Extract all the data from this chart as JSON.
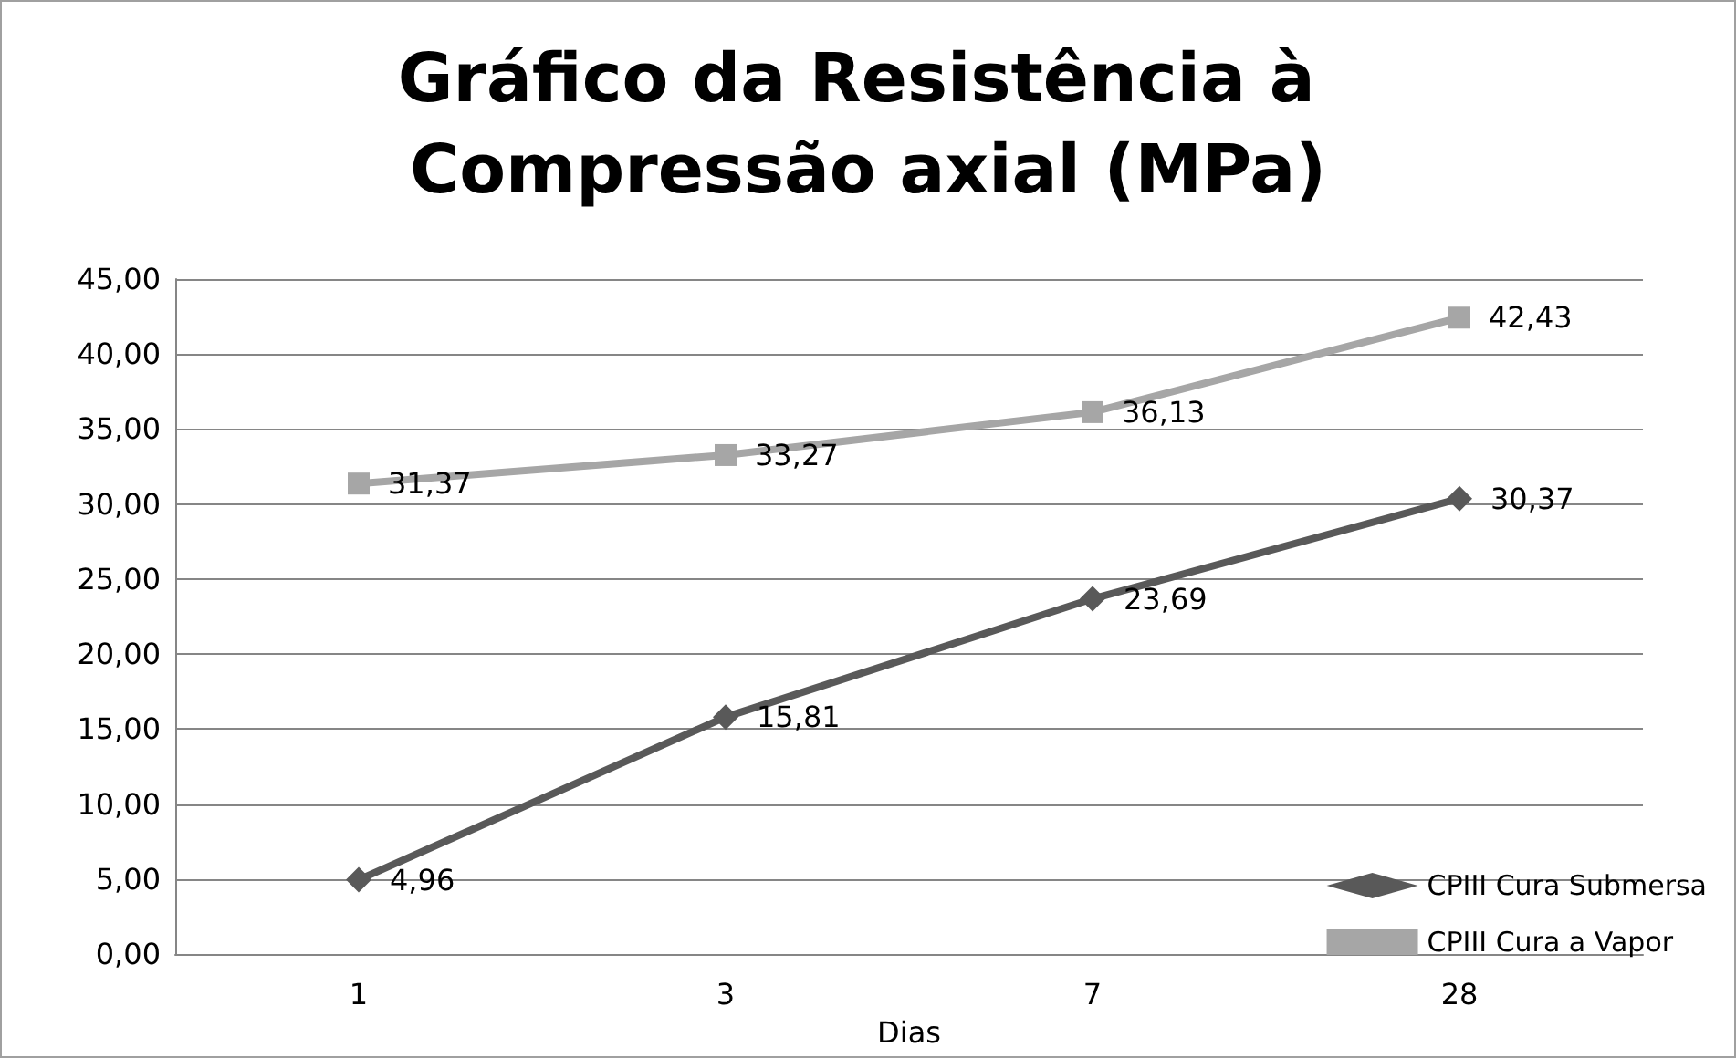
{
  "chart_data": {
    "type": "line",
    "title": "Gráfico da Resistência à Compressão axial (MPa)",
    "xlabel": "Dias",
    "categories": [
      "1",
      "3",
      "7",
      "28"
    ],
    "series": [
      {
        "name": "CPIII Cura Submersa",
        "color": "#595959",
        "marker": "diamond",
        "values": [
          4.96,
          15.81,
          23.69,
          30.37
        ],
        "value_labels": [
          "4,96",
          "15,81",
          "23,69",
          "30,37"
        ]
      },
      {
        "name": "CPIII Cura a Vapor",
        "color": "#a6a6a6",
        "marker": "square",
        "values": [
          31.37,
          33.27,
          36.13,
          42.43
        ],
        "value_labels": [
          "31,37",
          "33,27",
          "36,13",
          "42,43"
        ]
      }
    ],
    "ylim": [
      0,
      45
    ],
    "yticks": [
      {
        "value": 0,
        "label": "0,00"
      },
      {
        "value": 5,
        "label": "5,00"
      },
      {
        "value": 10,
        "label": "10,00"
      },
      {
        "value": 15,
        "label": "15,00"
      },
      {
        "value": 20,
        "label": "20,00"
      },
      {
        "value": 25,
        "label": "25,00"
      },
      {
        "value": 30,
        "label": "30,00"
      },
      {
        "value": 35,
        "label": "35,00"
      },
      {
        "value": 40,
        "label": "40,00"
      },
      {
        "value": 45,
        "label": "45,00"
      }
    ],
    "grid": "y",
    "legend": "bottom right",
    "line_style": "solid"
  }
}
